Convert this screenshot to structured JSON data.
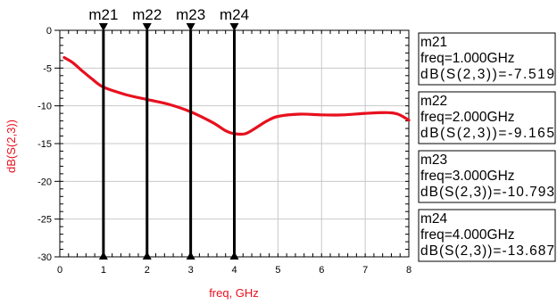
{
  "chart_data": {
    "type": "line",
    "title": "",
    "xlabel": "freq, GHz",
    "ylabel": "dB(S(2,3))",
    "xlim": [
      0,
      8
    ],
    "ylim": [
      -30,
      0
    ],
    "x_ticks": [
      0,
      1,
      2,
      3,
      4,
      5,
      6,
      7,
      8
    ],
    "y_ticks": [
      0,
      -5,
      -10,
      -15,
      -20,
      -25,
      -30
    ],
    "x_tick_labels": [
      "0",
      "1",
      "2",
      "3",
      "4",
      "5",
      "6",
      "7",
      "8"
    ],
    "y_tick_labels": [
      "0",
      "-5",
      "-10",
      "-15",
      "-20",
      "-25",
      "-30"
    ],
    "grid": true,
    "series": [
      {
        "color": "#e8101e",
        "x": [
          0.1,
          0.3,
          0.5,
          0.75,
          1.0,
          1.5,
          2.0,
          2.5,
          3.0,
          3.5,
          3.8,
          4.0,
          4.25,
          4.5,
          4.75,
          5.0,
          5.5,
          6.0,
          6.5,
          7.0,
          7.5,
          7.75,
          8.0
        ],
        "y": [
          -3.6,
          -4.3,
          -5.3,
          -6.5,
          -7.519,
          -8.5,
          -9.165,
          -9.8,
          -10.793,
          -12.2,
          -13.3,
          -13.687,
          -13.7,
          -12.9,
          -12.0,
          -11.4,
          -11.1,
          -11.2,
          -11.2,
          -11.0,
          -10.9,
          -11.1,
          -11.9
        ]
      }
    ],
    "markers": [
      {
        "name": "m21",
        "x": 1.0,
        "y": -7.519,
        "freq_text": "freq=1.000GHz",
        "value_text": "dB(S(2,3))=-7.519"
      },
      {
        "name": "m22",
        "x": 2.0,
        "y": -9.165,
        "freq_text": "freq=2.000GHz",
        "value_text": "dB(S(2,3))=-9.165"
      },
      {
        "name": "m23",
        "x": 3.0,
        "y": -10.793,
        "freq_text": "freq=3.000GHz",
        "value_text": "dB(S(2,3))=-10.793"
      },
      {
        "name": "m24",
        "x": 4.0,
        "y": -13.687,
        "freq_text": "freq=4.000GHz",
        "value_text": "dB(S(2,3))=-13.687"
      }
    ]
  },
  "colors": {
    "trace": "#e8101e",
    "marker_line": "#000000",
    "grid": "#c8c8c8",
    "axis_label": "#e8101e"
  }
}
